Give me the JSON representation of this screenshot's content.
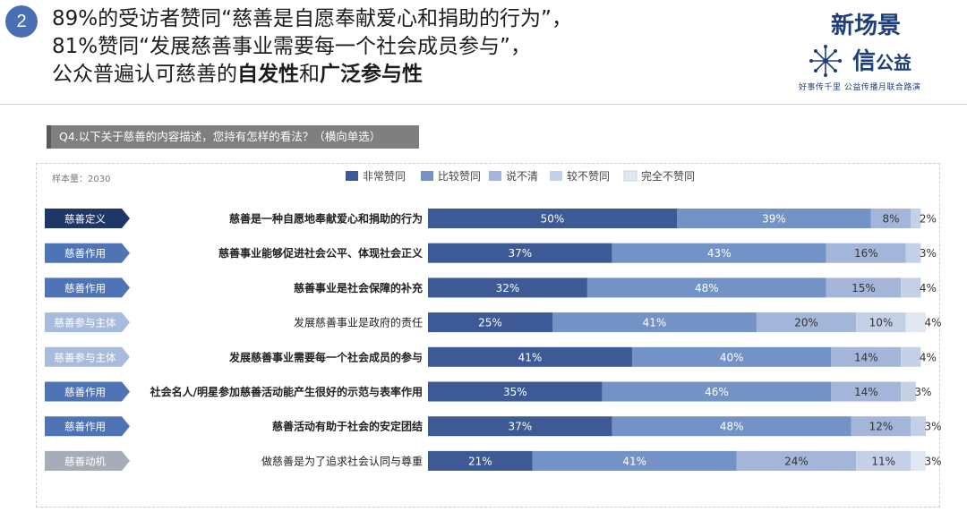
{
  "header": {
    "badge": "2",
    "line1": "89%的受访者赞同“慈善是自愿奉献爱心和捐助的行为”，",
    "line2": "81%赞同“发展慈善事业需要每一个社会成员参与”，",
    "line3_prefix": "公众普遍认可慈善的",
    "line3_b1": "自发性",
    "line3_mid": "和",
    "line3_b2": "广泛参与性"
  },
  "logo": {
    "line1": "新场景",
    "line2_a": "信",
    "line2_b": "公益",
    "line3": "好事传千里 公益传播月联合路演"
  },
  "question": "Q4.以下关于慈善的内容描述，您持有怎样的看法？（横向单选）",
  "sample_size": "样本量：2030",
  "colors": {
    "series": [
      "#3d5a96",
      "#7393c6",
      "#a3b6d9",
      "#c4d0e6",
      "#e2e8f2"
    ],
    "tag_dark": "#1f3766",
    "tag_mid": "#4f74b5",
    "tag_light": "#a7bcdc",
    "tag_gray": "#a6adb8"
  },
  "chart_data": {
    "type": "bar",
    "orientation": "horizontal",
    "stacked": true,
    "legend_position": "top-center",
    "series_names": [
      "非常赞同",
      "比较赞同",
      "说不清",
      "较不赞同",
      "完全不赞同"
    ],
    "rows": [
      {
        "tag": "慈善定义",
        "tag_style": "dark",
        "label": "慈善是一种自愿地奉献爱心和捐助的行为",
        "bold": true,
        "values": [
          50,
          39,
          8,
          2,
          null
        ],
        "labels": [
          "50%",
          "39%",
          "8%",
          "2%",
          ""
        ]
      },
      {
        "tag": "慈善作用",
        "tag_style": "mid",
        "label": "慈善事业能够促进社会公平、体现社会正义",
        "bold": true,
        "values": [
          37,
          43,
          16,
          3,
          null
        ],
        "labels": [
          "37%",
          "43%",
          "16%",
          "3%",
          ""
        ]
      },
      {
        "tag": "慈善作用",
        "tag_style": "mid",
        "label": "慈善事业是社会保障的补充",
        "bold": true,
        "values": [
          32,
          48,
          15,
          4,
          null
        ],
        "labels": [
          "32%",
          "48%",
          "15%",
          "4%",
          ""
        ]
      },
      {
        "tag": "慈善参与主体",
        "tag_style": "light",
        "label": "发展慈善事业是政府的责任",
        "bold": false,
        "values": [
          25,
          41,
          20,
          10,
          4
        ],
        "labels": [
          "25%",
          "41%",
          "20%",
          "10%",
          "4%"
        ]
      },
      {
        "tag": "慈善参与主体",
        "tag_style": "light",
        "label": "发展慈善事业需要每一个社会成员的参与",
        "bold": true,
        "values": [
          41,
          40,
          14,
          4,
          null
        ],
        "labels": [
          "41%",
          "40%",
          "14%",
          "4%",
          ""
        ]
      },
      {
        "tag": "慈善作用",
        "tag_style": "mid",
        "label": "社会名人/明星参加慈善活动能产生很好的示范与表率作用",
        "bold": true,
        "values": [
          35,
          46,
          14,
          3,
          null
        ],
        "labels": [
          "35%",
          "46%",
          "14%",
          "3%",
          ""
        ]
      },
      {
        "tag": "慈善作用",
        "tag_style": "mid",
        "label": "慈善活动有助于社会的安定团结",
        "bold": true,
        "values": [
          37,
          48,
          12,
          3,
          null
        ],
        "labels": [
          "37%",
          "48%",
          "12%",
          "3%",
          ""
        ]
      },
      {
        "tag": "慈善动机",
        "tag_style": "gray",
        "label": "做慈善是为了追求社会认同与尊重",
        "bold": false,
        "values": [
          21,
          41,
          24,
          11,
          3
        ],
        "labels": [
          "21%",
          "41%",
          "24%",
          "11%",
          "3%"
        ]
      }
    ]
  }
}
